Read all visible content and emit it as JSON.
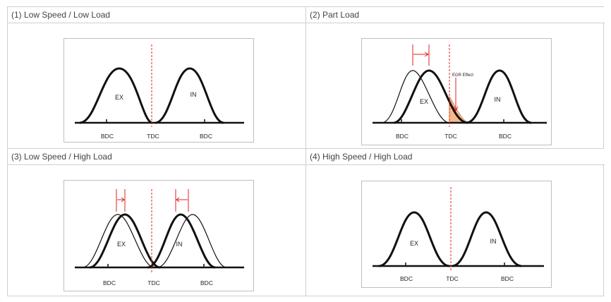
{
  "cells": [
    {
      "header": "(1) Low Speed / Low Load",
      "labels": {
        "ex": "EX",
        "in": "IN",
        "bdc_left": "BDC",
        "tdc": "TDC",
        "bdc_right": "BDC"
      }
    },
    {
      "header": "(2) Part Load",
      "labels": {
        "ex": "EX",
        "in": "IN",
        "bdc_left": "BDC",
        "tdc": "TDC",
        "bdc_right": "BDC",
        "egr": "EGR Effect"
      }
    },
    {
      "header": "(3) Low Speed / High Load",
      "labels": {
        "ex": "EX",
        "in": "IN",
        "bdc_left": "BDC",
        "tdc": "TDC",
        "bdc_right": "BDC"
      }
    },
    {
      "header": "(4) High Speed / High Load",
      "labels": {
        "ex": "EX",
        "in": "IN",
        "bdc_left": "BDC",
        "tdc": "TDC",
        "bdc_right": "BDC"
      }
    }
  ],
  "colors": {
    "curve": "#111111",
    "tdc_line": "#e02020",
    "egr_fill": "#f5b98a",
    "arrow": "#e02020"
  }
}
